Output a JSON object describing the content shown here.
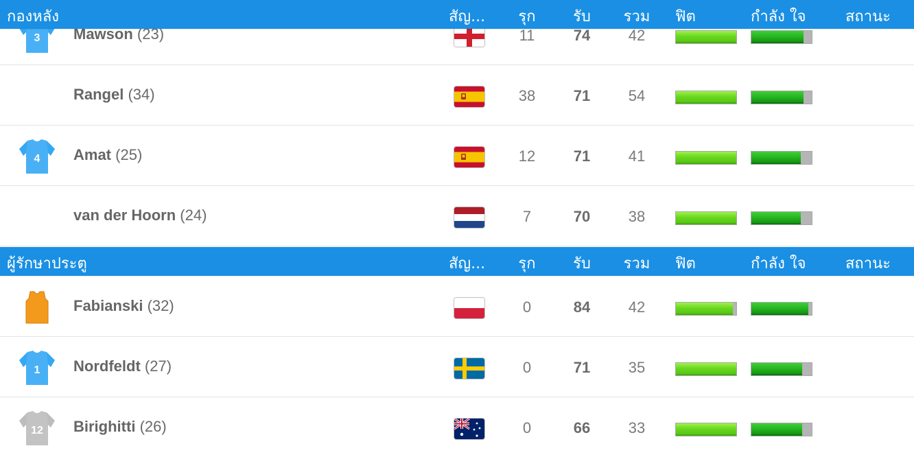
{
  "sections": [
    {
      "title": "กองหลัง",
      "columns": {
        "flag": "สัญ...",
        "attack": "รุก",
        "defense": "รับ",
        "overall": "รวม",
        "fitness": "ฟิต",
        "morale": "กำลัง ใจ",
        "status": "สถานะ"
      },
      "players": [
        {
          "name": "Mawson",
          "age": "(23)",
          "shirt": "3",
          "shirt_color": "#35a8f4",
          "flag": "england",
          "attack": "11",
          "defense": "74",
          "overall": "42",
          "fitness": 1.0,
          "morale": 0.86
        },
        {
          "name": "Rangel",
          "age": "(34)",
          "shirt": "",
          "shirt_color": "",
          "flag": "spain",
          "attack": "38",
          "defense": "71",
          "overall": "54",
          "fitness": 1.0,
          "morale": 0.86
        },
        {
          "name": "Amat",
          "age": "(25)",
          "shirt": "4",
          "shirt_color": "#35a8f4",
          "flag": "spain",
          "attack": "12",
          "defense": "71",
          "overall": "41",
          "fitness": 1.0,
          "morale": 0.82
        },
        {
          "name": "van der Hoorn",
          "age": "(24)",
          "shirt": "",
          "shirt_color": "",
          "flag": "netherlands",
          "attack": "7",
          "defense": "70",
          "overall": "38",
          "fitness": 1.0,
          "morale": 0.82
        }
      ]
    },
    {
      "title": "ผู้รักษาประตู",
      "columns": {
        "flag": "สัญ...",
        "attack": "รุก",
        "defense": "รับ",
        "overall": "รวม",
        "fitness": "ฟิต",
        "morale": "กำลัง ใจ",
        "status": "สถานะ"
      },
      "players": [
        {
          "name": "Fabianski",
          "age": "(32)",
          "shirt": "",
          "shirt_color": "#f39a1d",
          "shirt_type": "bib",
          "flag": "poland",
          "attack": "0",
          "defense": "84",
          "overall": "42",
          "fitness": 0.94,
          "morale": 0.94
        },
        {
          "name": "Nordfeldt",
          "age": "(27)",
          "shirt": "1",
          "shirt_color": "#35a8f4",
          "flag": "sweden",
          "attack": "0",
          "defense": "71",
          "overall": "35",
          "fitness": 1.0,
          "morale": 0.84
        },
        {
          "name": "Birighitti",
          "age": "(26)",
          "shirt": "12",
          "shirt_color": "#bdbdbd",
          "flag": "australia",
          "attack": "0",
          "defense": "66",
          "overall": "33",
          "fitness": 1.0,
          "morale": 0.84
        }
      ]
    }
  ]
}
